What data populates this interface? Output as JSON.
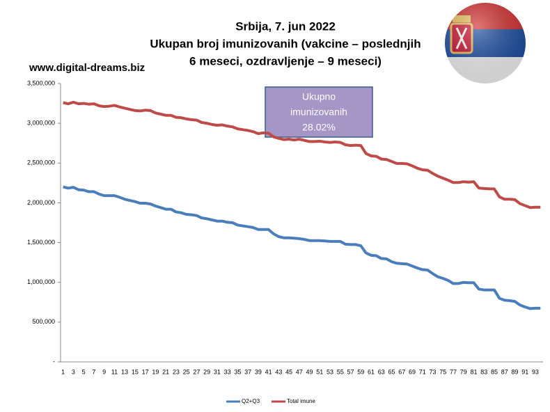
{
  "chart_data": {
    "type": "line",
    "title": [
      "Srbija, 7. jun 2022",
      "Ukupan broj imunizovanih (vakcine – poslednjih",
      "6 meseci, ozdravljenje – 9 meseci)"
    ],
    "source": "www.digital-dreams.biz",
    "annotation": [
      "Ukupno",
      "imunizovanih",
      "28.02%"
    ],
    "categories": [
      "1",
      null,
      "3",
      null,
      "5",
      null,
      "7",
      null,
      "9",
      null,
      "11",
      null,
      "13",
      null,
      "15",
      null,
      "17",
      null,
      "19",
      null,
      "21",
      null,
      "23",
      null,
      "25",
      null,
      "27",
      null,
      "29",
      null,
      "31",
      null,
      "33",
      null,
      "35",
      null,
      "37",
      null,
      "39",
      null,
      "41",
      null,
      "43",
      null,
      "45",
      null,
      "47",
      null,
      "49",
      null,
      "51",
      null,
      "53",
      null,
      "55",
      null,
      "57",
      null,
      "59",
      null,
      "61",
      null,
      "63",
      null,
      "65",
      null,
      "67",
      null,
      "69",
      null,
      "71",
      null,
      "73",
      null,
      "75",
      null,
      "77",
      null,
      "79",
      null,
      "81",
      null,
      "83",
      null,
      "85",
      null,
      "87",
      null,
      "89",
      null,
      "91",
      null,
      "93",
      null
    ],
    "series": [
      {
        "name": "Q2+Q3",
        "color": "#4a7ebb",
        "values": [
          2200000,
          2185000,
          2195000,
          2165000,
          2160000,
          2140000,
          2140000,
          2110000,
          2090000,
          2090000,
          2090000,
          2070000,
          2045000,
          2030000,
          2015000,
          1995000,
          1995000,
          1985000,
          1960000,
          1940000,
          1920000,
          1920000,
          1885000,
          1875000,
          1855000,
          1850000,
          1840000,
          1810000,
          1800000,
          1785000,
          1770000,
          1770000,
          1755000,
          1750000,
          1720000,
          1710000,
          1700000,
          1690000,
          1665000,
          1665000,
          1665000,
          1610000,
          1575000,
          1560000,
          1560000,
          1555000,
          1550000,
          1540000,
          1525000,
          1525000,
          1525000,
          1520000,
          1515000,
          1515000,
          1515000,
          1480000,
          1475000,
          1475000,
          1460000,
          1370000,
          1340000,
          1335000,
          1300000,
          1295000,
          1260000,
          1240000,
          1235000,
          1230000,
          1205000,
          1180000,
          1160000,
          1155000,
          1110000,
          1070000,
          1050000,
          1025000,
          985000,
          985000,
          1000000,
          995000,
          995000,
          915000,
          905000,
          905000,
          905000,
          800000,
          775000,
          770000,
          760000,
          715000,
          690000,
          670000,
          675000,
          675000
        ]
      },
      {
        "name": "Total imune",
        "color": "#be4b48",
        "values": [
          3260000,
          3245000,
          3265000,
          3245000,
          3250000,
          3240000,
          3245000,
          3220000,
          3210000,
          3215000,
          3225000,
          3205000,
          3190000,
          3175000,
          3160000,
          3155000,
          3165000,
          3160000,
          3130000,
          3115000,
          3100000,
          3100000,
          3075000,
          3070000,
          3055000,
          3045000,
          3040000,
          3010000,
          3000000,
          2985000,
          2975000,
          2980000,
          2965000,
          2955000,
          2930000,
          2920000,
          2910000,
          2895000,
          2870000,
          2880000,
          2875000,
          2830000,
          2810000,
          2795000,
          2800000,
          2790000,
          2800000,
          2785000,
          2770000,
          2770000,
          2775000,
          2765000,
          2760000,
          2765000,
          2760000,
          2730000,
          2720000,
          2725000,
          2720000,
          2620000,
          2590000,
          2585000,
          2550000,
          2545000,
          2520000,
          2495000,
          2495000,
          2490000,
          2465000,
          2435000,
          2415000,
          2410000,
          2370000,
          2335000,
          2310000,
          2285000,
          2255000,
          2255000,
          2265000,
          2260000,
          2265000,
          2185000,
          2180000,
          2175000,
          2175000,
          2075000,
          2045000,
          2045000,
          2040000,
          1990000,
          1965000,
          1940000,
          1945000,
          1945000
        ]
      }
    ],
    "ylim": [
      0,
      3500000
    ],
    "yticks": [
      {
        "value": 0,
        "label": "-"
      },
      {
        "value": 500000,
        "label": "500,000"
      },
      {
        "value": 1000000,
        "label": "1,000,000"
      },
      {
        "value": 1500000,
        "label": "1,500,000"
      },
      {
        "value": 2000000,
        "label": "2,000,000"
      },
      {
        "value": 2500000,
        "label": "2,500,000"
      },
      {
        "value": 3000000,
        "label": "3,000,000"
      },
      {
        "value": 3500000,
        "label": "3,500,000"
      }
    ],
    "grid": false
  }
}
